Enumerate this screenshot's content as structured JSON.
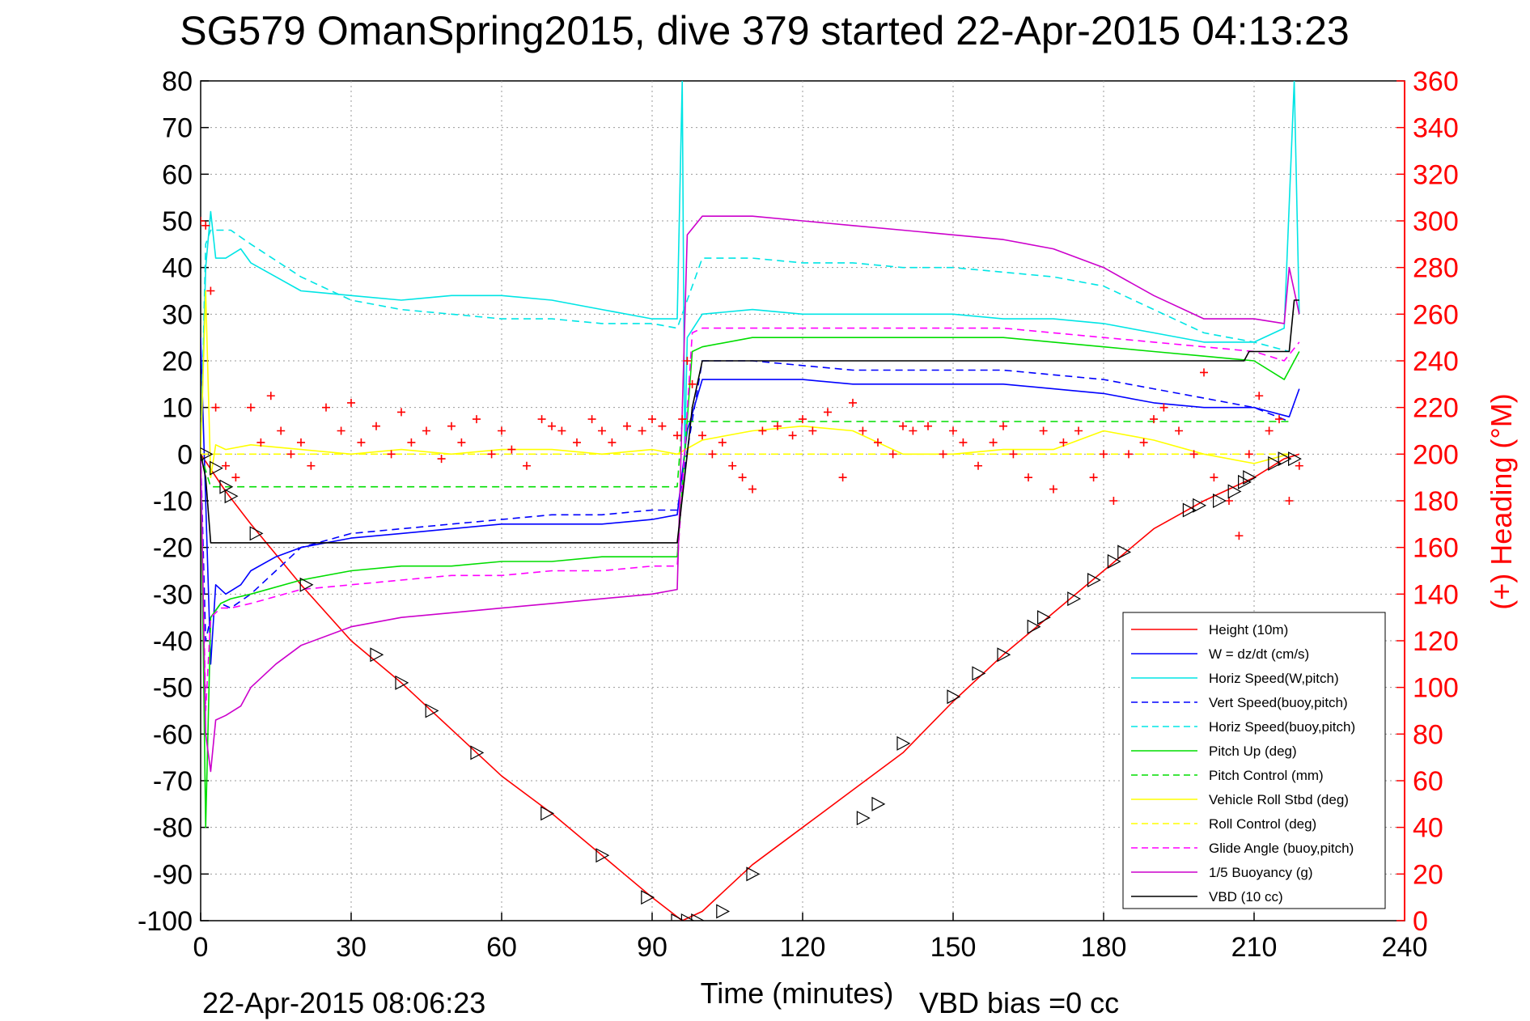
{
  "chart_data": {
    "type": "line",
    "title": "SG579 OmanSpring2015, dive 379 started 22-Apr-2015 04:13:23",
    "xlabel": "Time (minutes)",
    "ylabel": "",
    "y2label": "(+) Heading (°M)",
    "xlim": [
      0,
      240
    ],
    "ylim": [
      -100,
      80
    ],
    "y2lim": [
      0,
      360
    ],
    "grid": true,
    "legend_position": "bottom-right",
    "x_ticks": [
      "0",
      "30",
      "60",
      "90",
      "120",
      "150",
      "180",
      "210",
      "240"
    ],
    "y_ticks": [
      "80",
      "70",
      "60",
      "50",
      "40",
      "30",
      "20",
      "10",
      "0",
      "-10",
      "-20",
      "-30",
      "-40",
      "-50",
      "-60",
      "-70",
      "-80",
      "-90",
      "-100"
    ],
    "y2_ticks": [
      "360",
      "340",
      "320",
      "300",
      "280",
      "260",
      "240",
      "220",
      "200",
      "180",
      "160",
      "140",
      "120",
      "100",
      "80",
      "60",
      "40",
      "20",
      "0"
    ],
    "footer_left": "22-Apr-2015 08:06:23",
    "footer_right": "VBD bias =0 cc",
    "series": [
      {
        "name": "Height (10m)",
        "color": "#ff0000",
        "style": "solid",
        "x": [
          0,
          5,
          10,
          20,
          30,
          40,
          50,
          60,
          70,
          80,
          90,
          96,
          100,
          110,
          120,
          130,
          140,
          150,
          160,
          170,
          180,
          190,
          200,
          210,
          216,
          219
        ],
        "y": [
          0,
          -8,
          -15,
          -28,
          -40,
          -49,
          -59,
          -69,
          -77,
          -86,
          -95,
          -100,
          -98,
          -88,
          -80,
          -72,
          -64,
          -53,
          -43,
          -34,
          -25,
          -16,
          -10,
          -5,
          -1,
          0
        ]
      },
      {
        "name": "W = dz/dt (cm/s)",
        "color": "#0000ff",
        "style": "solid",
        "x": [
          0,
          1,
          2,
          3,
          5,
          8,
          10,
          15,
          20,
          30,
          40,
          50,
          60,
          70,
          80,
          90,
          95,
          97,
          100,
          110,
          120,
          130,
          140,
          150,
          160,
          170,
          180,
          190,
          200,
          210,
          217,
          219
        ],
        "y": [
          25,
          -10,
          -45,
          -28,
          -30,
          -28,
          -25,
          -22,
          -20,
          -18,
          -17,
          -16,
          -15,
          -15,
          -15,
          -14,
          -13,
          5,
          16,
          16,
          16,
          15,
          15,
          15,
          15,
          14,
          13,
          11,
          10,
          10,
          8,
          14
        ]
      },
      {
        "name": "Horiz Speed(W,pitch)",
        "color": "#00e5e5",
        "style": "solid",
        "x": [
          0,
          1,
          2,
          3,
          5,
          8,
          10,
          15,
          20,
          30,
          40,
          50,
          60,
          70,
          80,
          90,
          95,
          96,
          96.5,
          97,
          100,
          110,
          120,
          130,
          140,
          150,
          160,
          170,
          180,
          190,
          200,
          210,
          216,
          218,
          219
        ],
        "y": [
          0,
          40,
          52,
          42,
          42,
          44,
          41,
          38,
          35,
          34,
          33,
          34,
          34,
          33,
          31,
          29,
          29,
          80,
          0,
          25,
          30,
          31,
          30,
          30,
          30,
          30,
          29,
          29,
          28,
          26,
          24,
          24,
          27,
          80,
          30
        ]
      },
      {
        "name": "Vert Speed(buoy,pitch)",
        "color": "#0000ff",
        "style": "dashed",
        "x": [
          0,
          1,
          2,
          4,
          6,
          10,
          20,
          30,
          40,
          50,
          60,
          70,
          80,
          90,
          95,
          100,
          110,
          120,
          130,
          140,
          150,
          160,
          170,
          180,
          190,
          200,
          210,
          217
        ],
        "y": [
          0,
          -40,
          -35,
          -32,
          -33,
          -30,
          -20,
          -17,
          -16,
          -15,
          -14,
          -13,
          -13,
          -12,
          -12,
          20,
          20,
          19,
          18,
          18,
          18,
          18,
          17,
          16,
          14,
          12,
          10,
          7
        ]
      },
      {
        "name": "Horiz Speed(buoy,pitch)",
        "color": "#00e5e5",
        "style": "dashed",
        "x": [
          0,
          1,
          2,
          4,
          6,
          10,
          20,
          30,
          40,
          50,
          60,
          70,
          80,
          90,
          95,
          100,
          110,
          120,
          130,
          140,
          150,
          160,
          170,
          180,
          190,
          200,
          210,
          217
        ],
        "y": [
          0,
          45,
          48,
          48,
          48,
          45,
          38,
          33,
          31,
          30,
          29,
          29,
          28,
          28,
          27,
          42,
          42,
          41,
          41,
          40,
          40,
          39,
          38,
          36,
          31,
          26,
          24,
          22
        ]
      },
      {
        "name": "Pitch Up (deg)",
        "color": "#00dd00",
        "style": "solid",
        "x": [
          0,
          1,
          2,
          4,
          6,
          10,
          20,
          30,
          40,
          50,
          60,
          70,
          80,
          90,
          95,
          98,
          100,
          110,
          120,
          130,
          140,
          150,
          160,
          170,
          180,
          190,
          200,
          210,
          216,
          219
        ],
        "y": [
          0,
          -80,
          -35,
          -32,
          -31,
          -30,
          -27,
          -25,
          -24,
          -24,
          -23,
          -23,
          -22,
          -22,
          -22,
          22,
          23,
          25,
          25,
          25,
          25,
          25,
          25,
          24,
          23,
          22,
          21,
          20,
          16,
          22
        ]
      },
      {
        "name": "Pitch Control (mm)",
        "color": "#00dd00",
        "style": "dashed",
        "x": [
          0,
          2,
          4,
          95,
          96,
          217
        ],
        "y": [
          0,
          -7,
          -7,
          -7,
          7,
          7
        ]
      },
      {
        "name": "Vehicle Roll Stbd (deg)",
        "color": "#ffff00",
        "style": "solid",
        "x": [
          0,
          1,
          2,
          3,
          5,
          10,
          20,
          30,
          40,
          50,
          60,
          70,
          80,
          90,
          95,
          100,
          110,
          120,
          130,
          140,
          150,
          160,
          170,
          180,
          190,
          200,
          210,
          217
        ],
        "y": [
          0,
          35,
          -5,
          2,
          1,
          2,
          1,
          0,
          1,
          0,
          1,
          1,
          0,
          1,
          0,
          3,
          5,
          6,
          5,
          0,
          0,
          1,
          1,
          5,
          3,
          0,
          -2,
          0
        ]
      },
      {
        "name": "Roll Control (deg)",
        "color": "#ffff00",
        "style": "dashed",
        "x": [
          0,
          2,
          217
        ],
        "y": [
          0,
          0,
          0
        ]
      },
      {
        "name": "Glide Angle (buoy,pitch)",
        "color": "#ff00ff",
        "style": "dashed",
        "x": [
          0,
          1,
          2,
          4,
          6,
          10,
          20,
          30,
          40,
          50,
          60,
          70,
          80,
          90,
          95,
          98,
          100,
          110,
          120,
          130,
          140,
          150,
          160,
          170,
          180,
          190,
          200,
          210,
          216,
          219
        ],
        "y": [
          0,
          -55,
          -35,
          -33,
          -33,
          -32,
          -29,
          -28,
          -27,
          -26,
          -26,
          -25,
          -25,
          -24,
          -24,
          26,
          27,
          27,
          27,
          27,
          27,
          27,
          27,
          26,
          25,
          24,
          23,
          22,
          20,
          24
        ]
      },
      {
        "name": "1/5 Buoyancy (g)",
        "color": "#cc00cc",
        "style": "solid",
        "x": [
          0,
          1,
          2,
          3,
          5,
          8,
          10,
          15,
          20,
          30,
          40,
          50,
          60,
          70,
          80,
          90,
          95,
          97,
          100,
          110,
          120,
          130,
          140,
          150,
          160,
          170,
          180,
          190,
          200,
          210,
          216,
          217,
          219
        ],
        "y": [
          0,
          -60,
          -68,
          -57,
          -56,
          -54,
          -50,
          -45,
          -41,
          -37,
          -35,
          -34,
          -33,
          -32,
          -31,
          -30,
          -29,
          47,
          51,
          51,
          50,
          49,
          48,
          47,
          46,
          44,
          40,
          34,
          29,
          29,
          28,
          40,
          30
        ]
      },
      {
        "name": "VBD (10 cc)",
        "color": "#000000",
        "style": "solid",
        "x": [
          0,
          1,
          2,
          10,
          20,
          30,
          40,
          50,
          60,
          70,
          80,
          90,
          95,
          97,
          98,
          100,
          110,
          120,
          130,
          140,
          150,
          160,
          170,
          180,
          190,
          200,
          205,
          208,
          209,
          210,
          217,
          218,
          219
        ],
        "y": [
          0,
          -5,
          -19,
          -19,
          -19,
          -19,
          -19,
          -19,
          -19,
          -19,
          -19,
          -19,
          -19,
          0,
          10,
          20,
          20,
          20,
          20,
          20,
          20,
          20,
          20,
          20,
          20,
          20,
          20,
          20,
          22,
          22,
          22,
          33,
          33
        ]
      },
      {
        "name": "Heading",
        "color": "#ff0000",
        "style": "plus-markers",
        "axis": "right",
        "x": [
          0,
          1,
          2,
          3,
          5,
          7,
          10,
          12,
          14,
          16,
          18,
          20,
          22,
          25,
          28,
          30,
          32,
          35,
          38,
          40,
          42,
          45,
          48,
          50,
          52,
          55,
          58,
          60,
          62,
          65,
          68,
          70,
          72,
          75,
          78,
          80,
          82,
          85,
          88,
          90,
          92,
          95,
          96,
          97,
          98,
          100,
          102,
          104,
          106,
          108,
          110,
          112,
          115,
          118,
          120,
          122,
          125,
          128,
          130,
          132,
          135,
          138,
          140,
          142,
          145,
          148,
          150,
          152,
          155,
          158,
          160,
          162,
          165,
          168,
          170,
          172,
          175,
          178,
          180,
          182,
          185,
          188,
          190,
          192,
          195,
          198,
          200,
          202,
          205,
          207,
          209,
          211,
          213,
          215,
          217,
          219
        ],
        "y": [
          300,
          298,
          270,
          220,
          195,
          190,
          220,
          205,
          225,
          210,
          200,
          205,
          195,
          220,
          210,
          222,
          205,
          212,
          200,
          218,
          205,
          210,
          198,
          212,
          205,
          215,
          200,
          210,
          202,
          195,
          215,
          212,
          210,
          205,
          215,
          210,
          205,
          212,
          210,
          215,
          212,
          208,
          215,
          240,
          230,
          208,
          200,
          205,
          195,
          190,
          185,
          210,
          212,
          208,
          215,
          210,
          218,
          190,
          222,
          210,
          205,
          200,
          212,
          210,
          212,
          200,
          210,
          205,
          195,
          205,
          212,
          200,
          190,
          210,
          185,
          205,
          210,
          190,
          200,
          180,
          200,
          205,
          215,
          220,
          210,
          200,
          235,
          190,
          180,
          165,
          200,
          225,
          210,
          215,
          180,
          195
        ]
      },
      {
        "name": "Depth markers",
        "color": "#000000",
        "style": "triangle-markers",
        "x": [
          1,
          3,
          5,
          6,
          11,
          21,
          35,
          40,
          46,
          55,
          69,
          80,
          89,
          95,
          97,
          99,
          104,
          110,
          132,
          135,
          140,
          150,
          155,
          160,
          166,
          168,
          174,
          178,
          182,
          184,
          197,
          199,
          203,
          206,
          208,
          209,
          214,
          216,
          218
        ],
        "y": [
          0,
          -3,
          -7,
          -9,
          -17,
          -28,
          -43,
          -49,
          -55,
          -64,
          -77,
          -86,
          -95,
          -100,
          -100,
          -100,
          -98,
          -90,
          -78,
          -75,
          -62,
          -52,
          -47,
          -43,
          -37,
          -35,
          -31,
          -27,
          -23,
          -21,
          -12,
          -11,
          -10,
          -8,
          -6,
          -5,
          -2,
          -1,
          -1
        ]
      }
    ]
  }
}
